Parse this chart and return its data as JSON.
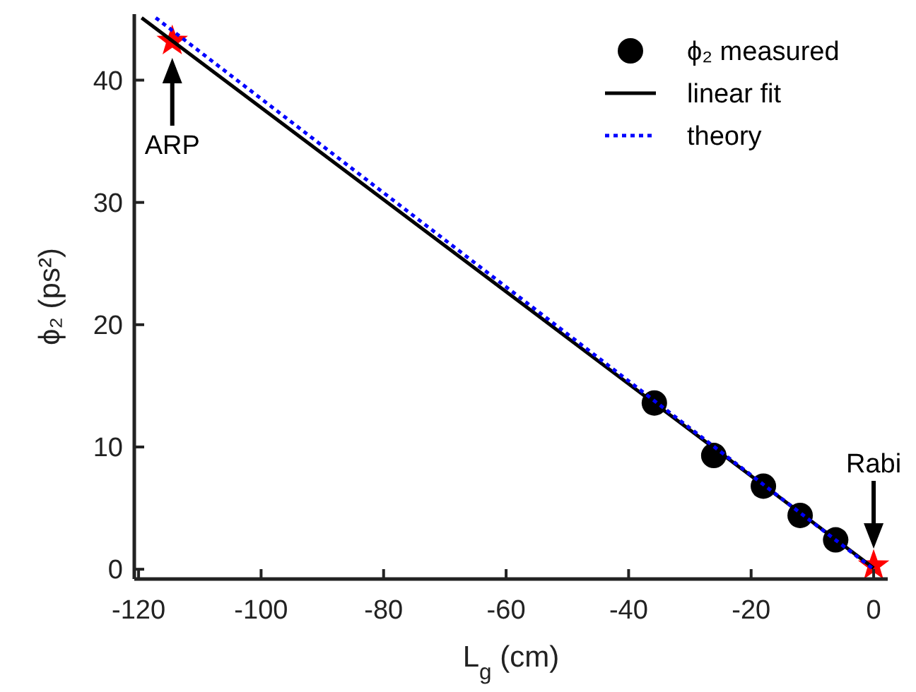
{
  "chart_data": {
    "type": "scatter",
    "xlabel": "L$_{g}$ (cm)",
    "ylabel": "ϕ₂ (ps²)",
    "xlim": [
      -120.7,
      2.3
    ],
    "ylim": [
      -0.8,
      45.4
    ],
    "xticks": [
      -120,
      -100,
      -80,
      -60,
      -40,
      -20,
      0
    ],
    "yticks": [
      0,
      10,
      20,
      30,
      40
    ],
    "grid": false,
    "legend": "top right",
    "series": [
      {
        "color": "#ff0000",
        "marker": "star",
        "x": [
          -114.5,
          0
        ],
        "values": [
          43.2,
          0.3
        ]
      },
      {
        "name": "ϕ₂ measured",
        "color": "#000000",
        "marker": "circle",
        "x": [
          -35.8,
          -26.1,
          -18,
          -12,
          -6.2
        ],
        "values": [
          13.6,
          9.3,
          6.8,
          4.4,
          2.4
        ]
      },
      {
        "name": "linear fit",
        "type": "line",
        "color": "#000000",
        "marker": "none",
        "line_style": "solid",
        "x": [
          -119.5,
          0
        ],
        "values": [
          45.1,
          0.1
        ]
      },
      {
        "name": "theory",
        "type": "line",
        "color": "#0000ff",
        "marker": "none",
        "line_style": "dotted",
        "x": [
          -117.2,
          0
        ],
        "values": [
          45.1,
          0
        ]
      }
    ],
    "annotations": [
      "ARP",
      "Rabi"
    ]
  }
}
